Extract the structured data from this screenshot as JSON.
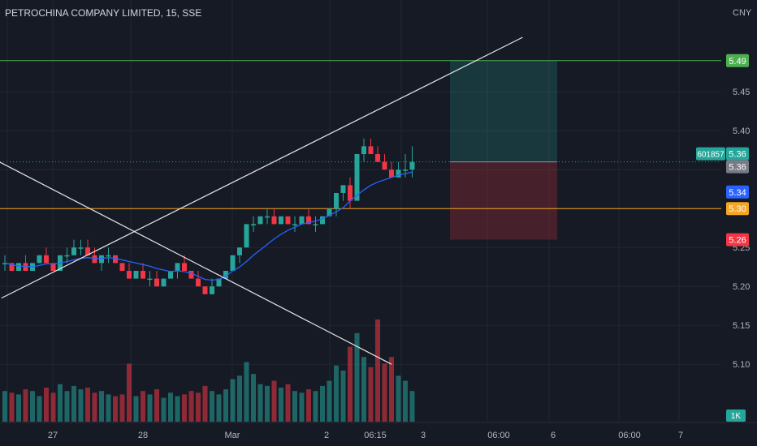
{
  "header": {
    "title": "PETROCHINA COMPANY LIMITED, 15, SSE"
  },
  "price_axis": {
    "currency": "CNY",
    "ticks": [
      "5.45",
      "5.40",
      "5.25",
      "5.20",
      "5.15",
      "5.10"
    ],
    "labels": [
      {
        "text": "5.49",
        "color": "#4caf50"
      },
      {
        "text": "5.36",
        "color": "#26a69a"
      },
      {
        "text": "5.36",
        "color": "#787b86"
      },
      {
        "text": "5.34",
        "color": "#2962ff"
      },
      {
        "text": "5.30",
        "color": "#f5a623"
      },
      {
        "text": "5.26",
        "color": "#f23645"
      }
    ],
    "symbol_tag": "601857",
    "volume_tag": "1K"
  },
  "time_axis": {
    "labels": [
      "27",
      "28",
      "Mar",
      "2",
      "06:15",
      "3",
      "06:00",
      "6",
      "06:00",
      "7"
    ]
  },
  "colors": {
    "background": "#161a25",
    "up": "#26a69a",
    "down": "#f23645",
    "ma": "#2962ff",
    "level_green": "#4caf50",
    "level_orange": "#f5a623",
    "grid": "#232632",
    "text": "#b2b5be"
  },
  "chart_data": {
    "type": "candlestick",
    "ylim": [
      5.08,
      5.52
    ],
    "horizontal_lines": [
      {
        "price": 5.49,
        "color": "#4caf50"
      },
      {
        "price": 5.3,
        "color": "#f5a623"
      },
      {
        "price": 5.36,
        "color": "#26a69a",
        "style": "dotted"
      }
    ],
    "position_tool": {
      "entry": 5.36,
      "target": 5.49,
      "stop": 5.26
    },
    "candles": [
      [
        5.23,
        5.24,
        5.22,
        5.23,
        18
      ],
      [
        5.23,
        5.23,
        5.22,
        5.22,
        17
      ],
      [
        5.22,
        5.23,
        5.22,
        5.23,
        16
      ],
      [
        5.23,
        5.24,
        5.22,
        5.22,
        19
      ],
      [
        5.22,
        5.23,
        5.22,
        5.23,
        18
      ],
      [
        5.23,
        5.24,
        5.23,
        5.24,
        15
      ],
      [
        5.24,
        5.25,
        5.23,
        5.23,
        20
      ],
      [
        5.23,
        5.23,
        5.22,
        5.22,
        17
      ],
      [
        5.22,
        5.24,
        5.22,
        5.24,
        22
      ],
      [
        5.24,
        5.25,
        5.23,
        5.24,
        18
      ],
      [
        5.24,
        5.26,
        5.24,
        5.25,
        21
      ],
      [
        5.25,
        5.26,
        5.24,
        5.25,
        19
      ],
      [
        5.25,
        5.26,
        5.24,
        5.24,
        20
      ],
      [
        5.24,
        5.25,
        5.23,
        5.23,
        17
      ],
      [
        5.23,
        5.24,
        5.22,
        5.24,
        18
      ],
      [
        5.24,
        5.25,
        5.23,
        5.24,
        16
      ],
      [
        5.24,
        5.24,
        5.23,
        5.23,
        15
      ],
      [
        5.23,
        5.23,
        5.22,
        5.22,
        16
      ],
      [
        5.22,
        5.23,
        5.21,
        5.21,
        34
      ],
      [
        5.21,
        5.22,
        5.21,
        5.22,
        15
      ],
      [
        5.22,
        5.23,
        5.21,
        5.21,
        18
      ],
      [
        5.21,
        5.22,
        5.2,
        5.21,
        16
      ],
      [
        5.21,
        5.22,
        5.2,
        5.2,
        19
      ],
      [
        5.2,
        5.21,
        5.2,
        5.21,
        14
      ],
      [
        5.21,
        5.22,
        5.21,
        5.22,
        17
      ],
      [
        5.22,
        5.23,
        5.21,
        5.23,
        15
      ],
      [
        5.23,
        5.24,
        5.22,
        5.22,
        16
      ],
      [
        5.22,
        5.22,
        5.21,
        5.21,
        18
      ],
      [
        5.21,
        5.22,
        5.2,
        5.2,
        17
      ],
      [
        5.2,
        5.2,
        5.19,
        5.19,
        21
      ],
      [
        5.19,
        5.21,
        5.19,
        5.2,
        18
      ],
      [
        5.2,
        5.21,
        5.2,
        5.21,
        16
      ],
      [
        5.21,
        5.22,
        5.21,
        5.22,
        19
      ],
      [
        5.22,
        5.24,
        5.22,
        5.24,
        25
      ],
      [
        5.24,
        5.25,
        5.23,
        5.25,
        27
      ],
      [
        5.25,
        5.28,
        5.25,
        5.28,
        35
      ],
      [
        5.28,
        5.29,
        5.27,
        5.28,
        28
      ],
      [
        5.28,
        5.29,
        5.28,
        5.29,
        22
      ],
      [
        5.29,
        5.3,
        5.28,
        5.29,
        21
      ],
      [
        5.29,
        5.3,
        5.28,
        5.28,
        24
      ],
      [
        5.28,
        5.29,
        5.28,
        5.29,
        20
      ],
      [
        5.29,
        5.29,
        5.28,
        5.28,
        22
      ],
      [
        5.28,
        5.29,
        5.27,
        5.28,
        18
      ],
      [
        5.28,
        5.29,
        5.28,
        5.29,
        17
      ],
      [
        5.29,
        5.3,
        5.28,
        5.28,
        19
      ],
      [
        5.28,
        5.29,
        5.27,
        5.28,
        18
      ],
      [
        5.28,
        5.29,
        5.28,
        5.29,
        21
      ],
      [
        5.29,
        5.3,
        5.29,
        5.3,
        24
      ],
      [
        5.3,
        5.32,
        5.29,
        5.32,
        33
      ],
      [
        5.32,
        5.33,
        5.31,
        5.33,
        30
      ],
      [
        5.33,
        5.34,
        5.3,
        5.31,
        44
      ],
      [
        5.31,
        5.37,
        5.31,
        5.37,
        52
      ],
      [
        5.37,
        5.39,
        5.36,
        5.38,
        38
      ],
      [
        5.38,
        5.39,
        5.37,
        5.37,
        32
      ],
      [
        5.37,
        5.38,
        5.36,
        5.36,
        60
      ],
      [
        5.36,
        5.37,
        5.35,
        5.35,
        34
      ],
      [
        5.35,
        5.36,
        5.34,
        5.34,
        38
      ],
      [
        5.34,
        5.36,
        5.34,
        5.35,
        27
      ],
      [
        5.35,
        5.37,
        5.34,
        5.35,
        24
      ],
      [
        5.35,
        5.38,
        5.34,
        5.36,
        18
      ]
    ],
    "moving_average": [
      5.23,
      5.228,
      5.226,
      5.226,
      5.225,
      5.227,
      5.229,
      5.229,
      5.23,
      5.232,
      5.234,
      5.236,
      5.237,
      5.236,
      5.236,
      5.237,
      5.236,
      5.234,
      5.232,
      5.23,
      5.228,
      5.226,
      5.223,
      5.221,
      5.219,
      5.22,
      5.219,
      5.217,
      5.213,
      5.209,
      5.208,
      5.209,
      5.213,
      5.22,
      5.225,
      5.232,
      5.24,
      5.247,
      5.254,
      5.261,
      5.267,
      5.272,
      5.276,
      5.28,
      5.282,
      5.284,
      5.287,
      5.291,
      5.296,
      5.301,
      5.31,
      5.317,
      5.324,
      5.33,
      5.334,
      5.337,
      5.34,
      5.343,
      5.345,
      5.347
    ],
    "trend_lines": [
      {
        "from": [
          -0.5,
          5.185
        ],
        "to": [
          75,
          5.52
        ]
      },
      {
        "from": [
          -3,
          5.37
        ],
        "to": [
          56,
          5.1
        ]
      }
    ]
  }
}
